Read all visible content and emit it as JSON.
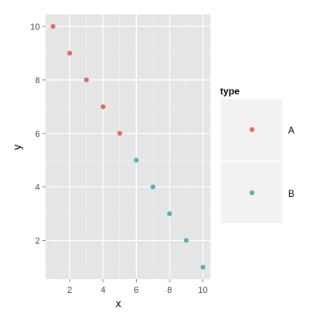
{
  "chart_data": {
    "type": "scatter",
    "xlabel": "x",
    "ylabel": "y",
    "xlim": [
      0.55,
      10.45
    ],
    "ylim": [
      0.55,
      10.45
    ],
    "x_ticks": [
      2,
      4,
      6,
      8,
      10
    ],
    "y_ticks": [
      2,
      4,
      6,
      8,
      10
    ],
    "grid": true,
    "legend": {
      "title": "type",
      "position": "right"
    },
    "series": [
      {
        "name": "A",
        "color": "#e16a56",
        "x": [
          1,
          2,
          3,
          4,
          5
        ],
        "y": [
          10,
          9,
          8,
          7,
          6
        ]
      },
      {
        "name": "B",
        "color": "#4fb1bb",
        "x": [
          6,
          7,
          8,
          9,
          10
        ],
        "y": [
          5,
          4,
          3,
          2,
          1
        ]
      }
    ]
  }
}
